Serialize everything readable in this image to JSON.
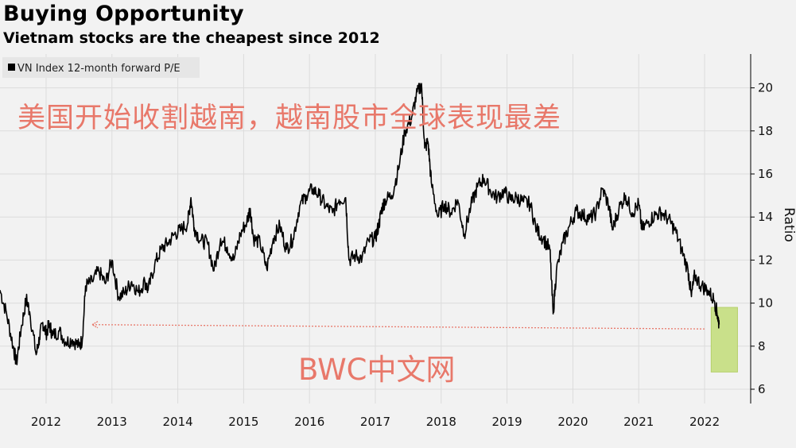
{
  "title": "Buying Opportunity",
  "subtitle": "Vietnam stocks are the cheapest since 2012",
  "overlay": {
    "headline": "美国开始收割越南，越南股市全球表现最差",
    "watermark": "BWC中文网",
    "color": "#e8786a"
  },
  "highlight_color": "#c9e08a",
  "chart_data": {
    "type": "line",
    "title": "Buying Opportunity",
    "subtitle": "Vietnam stocks are the cheapest since 2012",
    "xlabel": "",
    "ylabel": "Ratio",
    "xlim": [
      2011.3,
      2022.7
    ],
    "ylim": [
      6,
      21
    ],
    "x_ticks": [
      "2012",
      "2013",
      "2014",
      "2015",
      "2016",
      "2017",
      "2018",
      "2019",
      "2020",
      "2021",
      "2022"
    ],
    "y_ticks": [
      6,
      8,
      10,
      12,
      14,
      16,
      18,
      20
    ],
    "grid": true,
    "legend_position": "top-left",
    "series": [
      {
        "name": "VN Index 12-month forward P/E",
        "color": "#000000",
        "points": [
          [
            2011.3,
            10.6
          ],
          [
            2011.4,
            9.5
          ],
          [
            2011.5,
            8.0
          ],
          [
            2011.55,
            7.2
          ],
          [
            2011.62,
            8.8
          ],
          [
            2011.7,
            10.2
          ],
          [
            2011.75,
            9.6
          ],
          [
            2011.85,
            7.6
          ],
          [
            2011.9,
            8.4
          ],
          [
            2011.95,
            9.1
          ],
          [
            2012.0,
            8.6
          ],
          [
            2012.05,
            9.0
          ],
          [
            2012.1,
            8.5
          ],
          [
            2012.2,
            8.7
          ],
          [
            2012.3,
            8.2
          ],
          [
            2012.4,
            8.3
          ],
          [
            2012.5,
            8.0
          ],
          [
            2012.55,
            8.3
          ],
          [
            2012.6,
            10.8
          ],
          [
            2012.7,
            11.0
          ],
          [
            2012.8,
            11.5
          ],
          [
            2012.9,
            10.9
          ],
          [
            2013.0,
            12.0
          ],
          [
            2013.1,
            10.3
          ],
          [
            2013.2,
            10.5
          ],
          [
            2013.3,
            11.0
          ],
          [
            2013.4,
            10.5
          ],
          [
            2013.5,
            11.0
          ],
          [
            2013.55,
            10.6
          ],
          [
            2013.65,
            11.8
          ],
          [
            2013.75,
            12.5
          ],
          [
            2013.85,
            12.8
          ],
          [
            2013.95,
            13.2
          ],
          [
            2014.05,
            13.4
          ],
          [
            2014.15,
            13.7
          ],
          [
            2014.2,
            14.9
          ],
          [
            2014.25,
            13.5
          ],
          [
            2014.35,
            12.9
          ],
          [
            2014.45,
            12.8
          ],
          [
            2014.55,
            11.5
          ],
          [
            2014.65,
            13.0
          ],
          [
            2014.75,
            12.6
          ],
          [
            2014.85,
            12.0
          ],
          [
            2014.95,
            13.2
          ],
          [
            2015.05,
            13.8
          ],
          [
            2015.1,
            14.4
          ],
          [
            2015.15,
            13.0
          ],
          [
            2015.25,
            12.8
          ],
          [
            2015.35,
            11.6
          ],
          [
            2015.45,
            13.0
          ],
          [
            2015.55,
            13.6
          ],
          [
            2015.65,
            12.5
          ],
          [
            2015.75,
            13.0
          ],
          [
            2015.85,
            14.5
          ],
          [
            2015.95,
            15.0
          ],
          [
            2016.05,
            15.3
          ],
          [
            2016.15,
            15.0
          ],
          [
            2016.25,
            14.5
          ],
          [
            2016.35,
            14.2
          ],
          [
            2016.45,
            14.8
          ],
          [
            2016.55,
            14.9
          ],
          [
            2016.6,
            12.0
          ],
          [
            2016.7,
            12.2
          ],
          [
            2016.8,
            12.1
          ],
          [
            2016.9,
            12.9
          ],
          [
            2017.0,
            13.0
          ],
          [
            2017.05,
            13.6
          ],
          [
            2017.1,
            14.4
          ],
          [
            2017.15,
            14.8
          ],
          [
            2017.25,
            15.0
          ],
          [
            2017.35,
            16.2
          ],
          [
            2017.45,
            18.0
          ],
          [
            2017.55,
            18.6
          ],
          [
            2017.62,
            19.6
          ],
          [
            2017.7,
            20.2
          ],
          [
            2017.75,
            17.2
          ],
          [
            2017.8,
            17.5
          ],
          [
            2017.85,
            15.6
          ],
          [
            2017.95,
            14.0
          ],
          [
            2018.05,
            14.6
          ],
          [
            2018.15,
            14.2
          ],
          [
            2018.25,
            14.8
          ],
          [
            2018.35,
            13.2
          ],
          [
            2018.45,
            14.5
          ],
          [
            2018.55,
            15.4
          ],
          [
            2018.65,
            15.8
          ],
          [
            2018.75,
            15.2
          ],
          [
            2018.85,
            14.9
          ],
          [
            2018.95,
            15.2
          ],
          [
            2019.05,
            14.8
          ],
          [
            2019.15,
            14.9
          ],
          [
            2019.25,
            14.7
          ],
          [
            2019.35,
            14.6
          ],
          [
            2019.45,
            13.4
          ],
          [
            2019.55,
            13.0
          ],
          [
            2019.65,
            12.5
          ],
          [
            2019.7,
            9.5
          ],
          [
            2019.75,
            11.5
          ],
          [
            2019.85,
            12.8
          ],
          [
            2019.95,
            13.6
          ],
          [
            2020.05,
            14.3
          ],
          [
            2020.15,
            14.1
          ],
          [
            2020.25,
            13.9
          ],
          [
            2020.35,
            14.2
          ],
          [
            2020.45,
            15.3
          ],
          [
            2020.55,
            14.5
          ],
          [
            2020.6,
            13.4
          ],
          [
            2020.7,
            14.4
          ],
          [
            2020.8,
            15.0
          ],
          [
            2020.9,
            14.2
          ],
          [
            2021.0,
            14.6
          ],
          [
            2021.05,
            13.4
          ],
          [
            2021.15,
            13.8
          ],
          [
            2021.25,
            14.1
          ],
          [
            2021.35,
            14.2
          ],
          [
            2021.45,
            13.9
          ],
          [
            2021.55,
            13.4
          ],
          [
            2021.65,
            12.5
          ],
          [
            2021.75,
            11.5
          ],
          [
            2021.8,
            10.3
          ],
          [
            2021.85,
            11.3
          ],
          [
            2021.95,
            10.8
          ],
          [
            2022.05,
            10.6
          ],
          [
            2022.15,
            10.1
          ],
          [
            2022.2,
            9.4
          ],
          [
            2022.22,
            9.0
          ]
        ]
      }
    ],
    "annotations": [
      {
        "type": "dashed-arrow",
        "from": [
          2022.0,
          8.8
        ],
        "to": [
          2012.7,
          9.0
        ],
        "color": "#e8786a"
      },
      {
        "type": "highlight-box",
        "x_range": [
          2022.1,
          2022.5
        ],
        "y_range": [
          6.8,
          9.8
        ],
        "color": "#c9e08a"
      }
    ]
  }
}
